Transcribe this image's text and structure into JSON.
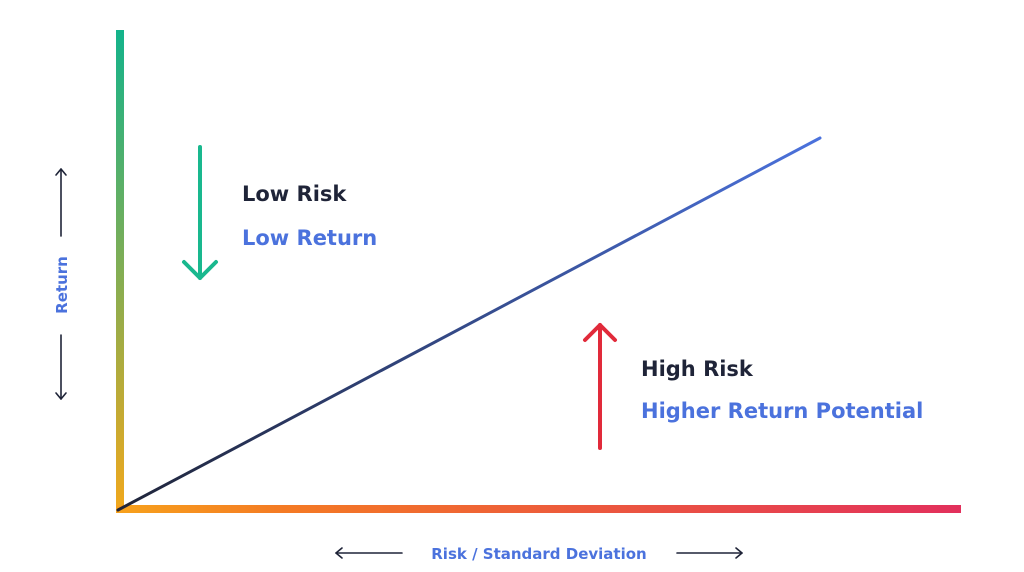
{
  "colors": {
    "dark_text": "#1f2438",
    "accent_blue": "#4b72dd",
    "green": "#19b88e",
    "red": "#e12a3a",
    "axis_gradient_y_top": "#13b38b",
    "axis_gradient_y_bottom": "#f2a81c",
    "axis_gradient_x_left": "#f7a21c",
    "axis_gradient_x_mid": "#f47a24",
    "axis_gradient_x_right": "#e2305c",
    "line_start": "#1f2438",
    "line_end": "#4b72dd",
    "axis_arrow": "#1f2438"
  },
  "labels": {
    "low_risk": "Low Risk",
    "low_return": "Low Return",
    "high_risk": "High Risk",
    "higher_return_potential": "Higher Return Potential",
    "y_axis": "Return",
    "x_axis": "Risk / Standard Deviation"
  },
  "icons": {
    "low_arrow": "arrow-down-icon",
    "high_arrow": "arrow-up-icon",
    "y_axis_up": "arrow-up-icon",
    "y_axis_down": "arrow-down-icon",
    "x_axis_left": "arrow-left-icon",
    "x_axis_right": "arrow-right-icon"
  }
}
